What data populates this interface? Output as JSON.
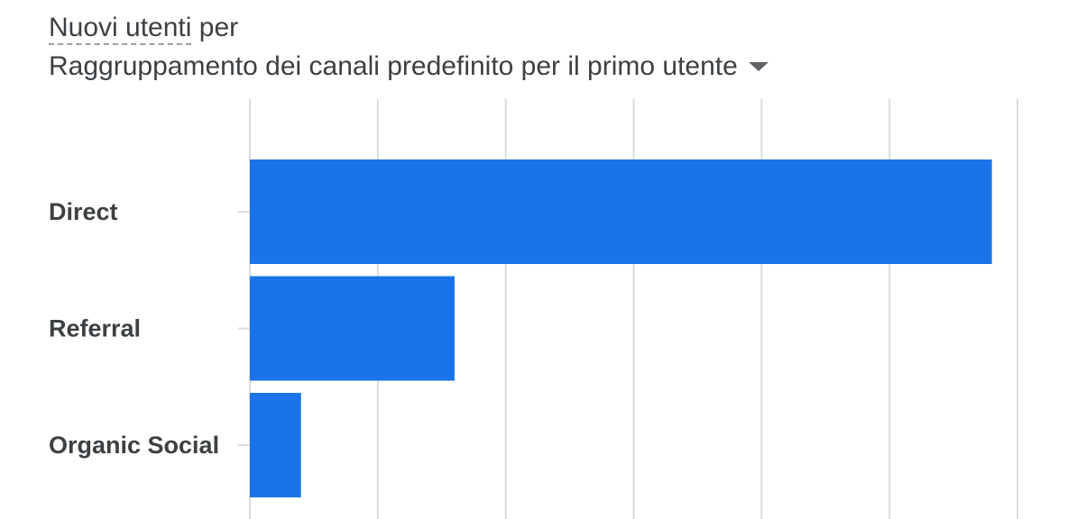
{
  "header": {
    "metric_label": "Nuovi utenti",
    "connector": "per",
    "dimension_label": "Raggruppamento dei canali predefinito per il primo utente",
    "dropdown_icon": "arrow-drop-down-icon"
  },
  "colors": {
    "bar": "#1a73e8",
    "grid": "#dadce0",
    "text": "#3c4043"
  },
  "chart_data": {
    "type": "bar",
    "orientation": "horizontal",
    "categories": [
      "Direct",
      "Referral",
      "Organic Social"
    ],
    "values": [
      58,
      16,
      4
    ],
    "xlim": [
      0,
      60
    ],
    "grid": true,
    "gridline_count": 7
  }
}
